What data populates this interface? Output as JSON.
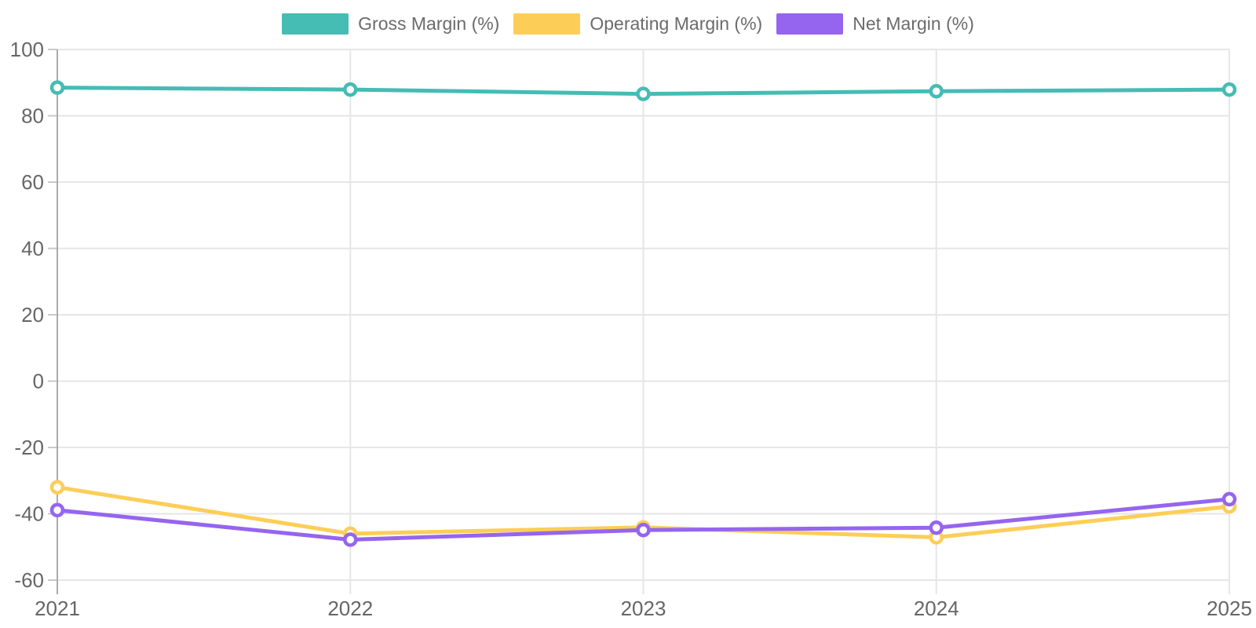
{
  "chart_data": {
    "type": "line",
    "categories": [
      "2021",
      "2022",
      "2023",
      "2024",
      "2025"
    ],
    "series": [
      {
        "name": "Gross Margin (%)",
        "color": "#45bcb4",
        "values": [
          88.5,
          87.9,
          86.6,
          87.4,
          87.9
        ]
      },
      {
        "name": "Operating Margin (%)",
        "color": "#fdce57",
        "values": [
          -32.0,
          -46.0,
          -44.1,
          -47.1,
          -37.8
        ]
      },
      {
        "name": "Net Margin (%)",
        "color": "#9565f0",
        "values": [
          -38.9,
          -47.8,
          -44.9,
          -44.2,
          -35.6
        ]
      }
    ],
    "title": "",
    "xlabel": "",
    "ylabel": "",
    "ylim": [
      -60,
      100
    ],
    "y_ticks": [
      100,
      80,
      60,
      40,
      20,
      0,
      -20,
      -40,
      -60
    ],
    "grid": true,
    "legend_position": "top",
    "axis_color": "#ababab",
    "grid_color": "#e6e6e6",
    "tick_mark_color": "#c9c9c9",
    "tick_label_color": "#666666"
  }
}
